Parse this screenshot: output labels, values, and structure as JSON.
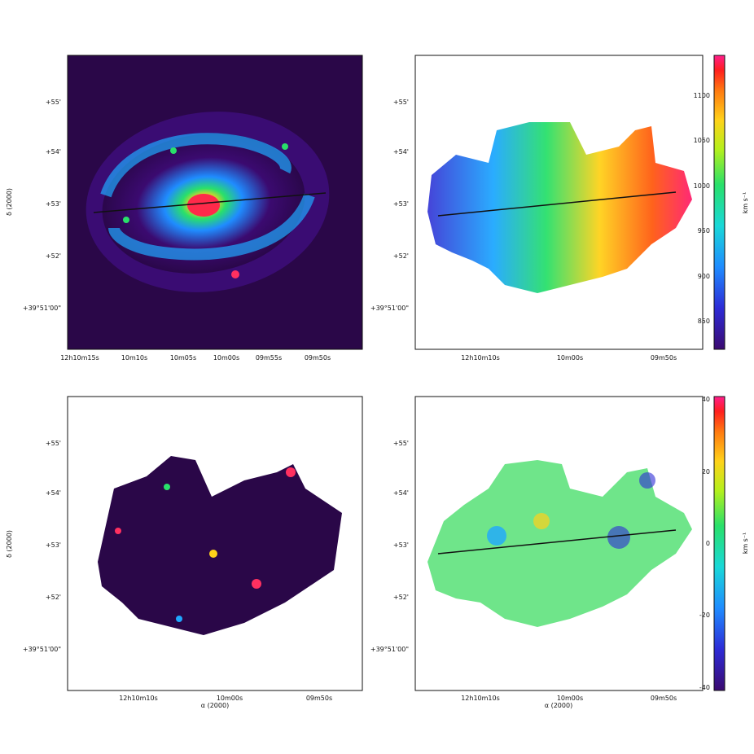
{
  "colors": {
    "frame": "#111111",
    "slit": "#111111",
    "velocity_colorbar": [
      "#3b0a70",
      "#2d2bd6",
      "#1f8cff",
      "#19d8d8",
      "#29e06a",
      "#b4f01c",
      "#ffd21a",
      "#ff7a10",
      "#ff1e1e",
      "#ff1e8c"
    ],
    "residual_colorbar": [
      "#3b0a70",
      "#2d2bd6",
      "#1f8cff",
      "#19d8d8",
      "#29e06a",
      "#b4f01c",
      "#ffd21a",
      "#ff7a10",
      "#ff1e1e",
      "#ff1e8c"
    ]
  },
  "panels": {
    "image": {
      "ytick_labels": [
        "+55'",
        "+54'",
        "+53'",
        "+52'",
        "+39°51'00\""
      ],
      "xtick_labels": [
        "12h10m15s",
        "10m10s",
        "10m05s",
        "10m00s",
        "09m55s",
        "09m50s"
      ],
      "ylabel": "δ (2000)"
    },
    "velocity": {
      "ytick_labels": [
        "+55'",
        "+54'",
        "+53'",
        "+52'",
        "+39°51'00\""
      ],
      "xtick_labels": [
        "12h10m10s",
        "10m00s",
        "09m50s"
      ],
      "colorbar_ticks": [
        "1100",
        "1050",
        "1000",
        "950",
        "900",
        "850"
      ],
      "colorbar_label": "km s⁻¹"
    },
    "intensity": {
      "ytick_labels": [
        "+55'",
        "+54'",
        "+53'",
        "+52'",
        "+39°51'00\""
      ],
      "xtick_labels": [
        "12h10m10s",
        "10m00s",
        "09m50s"
      ],
      "xlabel": "α (2000)",
      "ylabel": "δ (2000)"
    },
    "residual": {
      "ytick_labels": [
        "+55'",
        "+54'",
        "+53'",
        "+52'",
        "+39°51'00\""
      ],
      "xtick_labels": [
        "12h10m10s",
        "10m00s",
        "09m50s"
      ],
      "xlabel": "α (2000)",
      "colorbar_ticks": [
        "40",
        "20",
        "0",
        "-20",
        "-40"
      ],
      "colorbar_label": "km s⁻¹"
    }
  }
}
